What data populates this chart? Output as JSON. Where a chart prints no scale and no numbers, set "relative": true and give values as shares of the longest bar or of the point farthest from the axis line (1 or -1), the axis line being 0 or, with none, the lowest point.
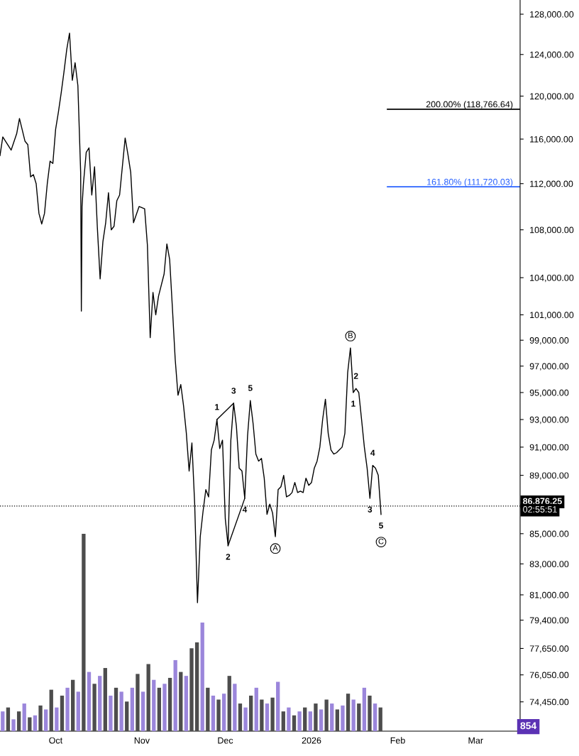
{
  "chart_data": [
    {
      "type": "line",
      "log": "y",
      "grid": false,
      "legend": false,
      "marker": "none",
      "line_style": "solid",
      "x": [
        "2025-09-11",
        "2025-09-12",
        "2025-09-15",
        "2025-09-17",
        "2025-09-18",
        "2025-09-20",
        "2025-09-21",
        "2025-09-22",
        "2025-09-23",
        "2025-09-24",
        "2025-09-25",
        "2025-09-26",
        "2025-09-27",
        "2025-09-28",
        "2025-09-29",
        "2025-09-30",
        "2025-10-01",
        "2025-10-02",
        "2025-10-03",
        "2025-10-04",
        "2025-10-05",
        "2025-10-06",
        "2025-10-07",
        "2025-10-08",
        "2025-10-09",
        "2025-10-10T00:00",
        "2025-10-10T06:00",
        "2025-10-10T12:00",
        "2025-10-11",
        "2025-10-12",
        "2025-10-13",
        "2025-10-14",
        "2025-10-15",
        "2025-10-16",
        "2025-10-17",
        "2025-10-18",
        "2025-10-19",
        "2025-10-20",
        "2025-10-21",
        "2025-10-22",
        "2025-10-23",
        "2025-10-24",
        "2025-10-26",
        "2025-10-27",
        "2025-10-28",
        "2025-10-29",
        "2025-10-31",
        "2025-11-02",
        "2025-11-03",
        "2025-11-04",
        "2025-11-05",
        "2025-11-06",
        "2025-11-07",
        "2025-11-09",
        "2025-11-10",
        "2025-11-11",
        "2025-11-12",
        "2025-11-13",
        "2025-11-14",
        "2025-11-15",
        "2025-11-16",
        "2025-11-17",
        "2025-11-18",
        "2025-11-19",
        "2025-11-20",
        "2025-11-21",
        "2025-11-22",
        "2025-11-23",
        "2025-11-24",
        "2025-11-25",
        "2025-11-26",
        "2025-11-27",
        "2025-11-28",
        "2025-11-29",
        "2025-11-30",
        "2025-12-01",
        "2025-12-02",
        "2025-12-03",
        "2025-12-04",
        "2025-12-05",
        "2025-12-06",
        "2025-12-07",
        "2025-12-08",
        "2025-12-09",
        "2025-12-10",
        "2025-12-11",
        "2025-12-12",
        "2025-12-13",
        "2025-12-14",
        "2025-12-15",
        "2025-12-16",
        "2025-12-17",
        "2025-12-18",
        "2025-12-19",
        "2025-12-20",
        "2025-12-21",
        "2025-12-22",
        "2025-12-23",
        "2025-12-24",
        "2025-12-25",
        "2025-12-26",
        "2025-12-27",
        "2025-12-28",
        "2025-12-29",
        "2025-12-30",
        "2025-12-31",
        "2026-01-01",
        "2026-01-02",
        "2026-01-03",
        "2026-01-04",
        "2026-01-05",
        "2026-01-06",
        "2026-01-07",
        "2026-01-08",
        "2026-01-09",
        "2026-01-10",
        "2026-01-11",
        "2026-01-12",
        "2026-01-13",
        "2026-01-14",
        "2026-01-15",
        "2026-01-16",
        "2026-01-17",
        "2026-01-18",
        "2026-01-19",
        "2026-01-20",
        "2026-01-21",
        "2026-01-22",
        "2026-01-23",
        "2026-01-24",
        "2026-01-25",
        "2026-01-26"
      ],
      "series": [
        {
          "color": "#000000",
          "values": [
            114500,
            116200,
            115000,
            116500,
            117900,
            115800,
            115500,
            112600,
            112800,
            112000,
            109400,
            108500,
            109400,
            112000,
            114000,
            113800,
            116900,
            118500,
            120300,
            122300,
            124500,
            126100,
            121500,
            123200,
            121000,
            113000,
            101300,
            110000,
            112000,
            114800,
            115200,
            111000,
            113500,
            108200,
            103900,
            107000,
            108600,
            111200,
            108000,
            108300,
            110500,
            111000,
            116100,
            114600,
            113000,
            108600,
            110000,
            109800,
            106700,
            99200,
            102800,
            101000,
            102500,
            104300,
            106800,
            105500,
            101500,
            97500,
            94800,
            95600,
            94000,
            92000,
            89300,
            91300,
            87000,
            80500,
            84800,
            86500,
            88000,
            87500,
            90800,
            91500,
            93000,
            90900,
            91500,
            86000,
            84200,
            91500,
            94200,
            92500,
            89500,
            89300,
            87400,
            91800,
            94400,
            92700,
            90500,
            90000,
            90200,
            88800,
            86300,
            87000,
            86400,
            84800,
            88000,
            88200,
            89000,
            87500,
            87600,
            87800,
            88500,
            87800,
            87900,
            87800,
            88800,
            88300,
            88500,
            89500,
            90000,
            91000,
            93000,
            94500,
            92000,
            90800,
            90500,
            90600,
            90800,
            91000,
            92000,
            96500,
            98400,
            95000,
            95300,
            95000,
            93000,
            91000,
            89500,
            87400,
            89700,
            89500,
            89000,
            86300
          ]
        },
        {
          "type": "line",
          "color": "#000000",
          "x": [
            "2025-11-28",
            "2025-12-04"
          ],
          "values": [
            93000,
            94200
          ]
        },
        {
          "type": "line",
          "color": "#000000",
          "x": [
            "2025-12-02",
            "2025-12-08"
          ],
          "values": [
            84200,
            87400
          ]
        }
      ],
      "xlim": [
        "2025-09-11",
        "2026-03-17"
      ],
      "xticks": [
        {
          "value": "2025-10-01",
          "label": "Oct"
        },
        {
          "value": "2025-11-01",
          "label": "Nov"
        },
        {
          "value": "2025-12-01",
          "label": "Dec"
        },
        {
          "value": "2026-01-01",
          "label": "2026"
        },
        {
          "value": "2026-02-01",
          "label": "Feb"
        },
        {
          "value": "2026-03-01",
          "label": "Mar"
        }
      ],
      "ylim": [
        72750,
        129440
      ],
      "yticks": [
        {
          "value": 128000,
          "label": "128,000.00"
        },
        {
          "value": 124000,
          "label": "124,000.00"
        },
        {
          "value": 120000,
          "label": "120,000.00"
        },
        {
          "value": 116000,
          "label": "116,000.00"
        },
        {
          "value": 112000,
          "label": "112,000.00"
        },
        {
          "value": 108000,
          "label": "108,000.00"
        },
        {
          "value": 104000,
          "label": "104,000.00"
        },
        {
          "value": 101000,
          "label": "101,000.00"
        },
        {
          "value": 99000,
          "label": "99,000.00"
        },
        {
          "value": 97000,
          "label": "97,000.00"
        },
        {
          "value": 95000,
          "label": "95,000.00"
        },
        {
          "value": 93000,
          "label": "93,000.00"
        },
        {
          "value": 91000,
          "label": "91,000.00"
        },
        {
          "value": 89000,
          "label": "89,000.00"
        },
        {
          "value": 85000,
          "label": "85,000.00"
        },
        {
          "value": 83000,
          "label": "83,000.00"
        },
        {
          "value": 81000,
          "label": "81,000.00"
        },
        {
          "value": 79400,
          "label": "79,400.00"
        },
        {
          "value": 77650,
          "label": "77,650.00"
        },
        {
          "value": 76050,
          "label": "76,050.00"
        },
        {
          "value": 74450,
          "label": "74,450.00"
        }
      ],
      "ref_lines": [
        {
          "axis": "y",
          "value": 118766.64,
          "label": "200.00% (118,766.64)",
          "color": "#000000",
          "line_style": "solid"
        },
        {
          "axis": "y",
          "value": 111720.03,
          "label": "161.80% (111,720.03)",
          "color": "#2962ff",
          "line_style": "solid"
        },
        {
          "axis": "y",
          "value": 86876.25,
          "label": "86,876.25",
          "color": "#000000",
          "line_style": "dotted"
        }
      ],
      "annotations": [
        {
          "text": "1",
          "x": "2025-11-28",
          "y": 93000
        },
        {
          "text": "3",
          "x": "2025-12-04",
          "y": 94200
        },
        {
          "text": "5",
          "x": "2025-12-10",
          "y": 94400
        },
        {
          "text": "2",
          "x": "2025-12-02",
          "y": 84200
        },
        {
          "text": "4",
          "x": "2025-12-08",
          "y": 87400
        },
        {
          "text": "A",
          "x": "2025-12-19",
          "y": 84800
        },
        {
          "text": "B",
          "x": "2026-01-15",
          "y": 98400
        },
        {
          "text": "2",
          "x": "2026-01-17",
          "y": 95300
        },
        {
          "text": "1",
          "x": "2026-01-16",
          "y": 95000
        },
        {
          "text": "4",
          "x": "2026-01-23",
          "y": 89700
        },
        {
          "text": "3",
          "x": "2026-01-22",
          "y": 87400
        },
        {
          "text": "5",
          "x": "2026-01-26",
          "y": 86300
        },
        "C",
        "02:55:51"
      ]
    },
    {
      "type": "bar",
      "relative": true,
      "categories": [
        null,
        null,
        null,
        null,
        null,
        null,
        null,
        null,
        null,
        null,
        null,
        null,
        null,
        null,
        null,
        null,
        null,
        null,
        null,
        null,
        null,
        null,
        null,
        null,
        null,
        null,
        null,
        null,
        null,
        null,
        null,
        null,
        null,
        null,
        null,
        null,
        null,
        null,
        null,
        null,
        null,
        null,
        null,
        null,
        null,
        null,
        null,
        null,
        null,
        null,
        null,
        null,
        null,
        null,
        null,
        null,
        null,
        null,
        null,
        null,
        null,
        null,
        null,
        null,
        null,
        null,
        null,
        null,
        null,
        null,
        null
      ],
      "values": [
        0.1,
        0.12,
        0.06,
        0.1,
        0.14,
        0.07,
        0.08,
        0.13,
        0.11,
        0.21,
        0.12,
        0.18,
        0.22,
        0.26,
        0.2,
        1.0,
        0.3,
        0.24,
        0.28,
        0.32,
        0.18,
        0.22,
        0.2,
        0.15,
        0.22,
        0.29,
        0.2,
        0.34,
        0.26,
        0.22,
        0.24,
        0.27,
        0.36,
        0.3,
        0.28,
        0.42,
        0.45,
        0.55,
        0.22,
        0.18,
        0.16,
        0.19,
        0.28,
        0.24,
        0.14,
        0.12,
        0.18,
        0.22,
        0.16,
        0.14,
        0.17,
        0.25,
        0.1,
        0.12,
        0.08,
        0.1,
        0.12,
        0.1,
        0.14,
        0.11,
        0.16,
        0.14,
        0.11,
        0.13,
        0.19,
        0.16,
        0.14,
        0.22,
        0.18,
        0.14,
        0.12
      ],
      "colors": [
        "#9b86db",
        "#4d4d4d",
        "#9b86db",
        "#4d4d4d",
        "#9b86db",
        "#4d4d4d",
        "#9b86db",
        "#4d4d4d",
        "#9b86db",
        "#4d4d4d",
        "#9b86db",
        "#4d4d4d",
        "#9b86db",
        "#4d4d4d",
        "#9b86db",
        "#4d4d4d",
        "#9b86db",
        "#4d4d4d",
        "#9b86db",
        "#4d4d4d",
        "#9b86db",
        "#4d4d4d",
        "#9b86db",
        "#4d4d4d",
        "#9b86db",
        "#4d4d4d",
        "#9b86db",
        "#4d4d4d",
        "#9b86db",
        "#4d4d4d",
        "#9b86db",
        "#4d4d4d",
        "#9b86db",
        "#4d4d4d",
        "#9b86db",
        "#4d4d4d",
        "#4d4d4d",
        "#9b86db",
        "#4d4d4d",
        "#9b86db",
        "#4d4d4d",
        "#9b86db",
        "#4d4d4d",
        "#9b86db",
        "#4d4d4d",
        "#9b86db",
        "#4d4d4d",
        "#9b86db",
        "#4d4d4d",
        "#9b86db",
        "#4d4d4d",
        "#9b86db",
        "#4d4d4d",
        "#9b86db",
        "#4d4d4d",
        "#9b86db",
        "#4d4d4d",
        "#9b86db",
        "#4d4d4d",
        "#9b86db",
        "#4d4d4d",
        "#9b86db",
        "#4d4d4d",
        "#9b86db",
        "#4d4d4d",
        "#9b86db",
        "#4d4d4d",
        "#9b86db",
        "#4d4d4d",
        "#9b86db",
        "#4d4d4d"
      ],
      "annotations": [
        "854"
      ]
    }
  ]
}
